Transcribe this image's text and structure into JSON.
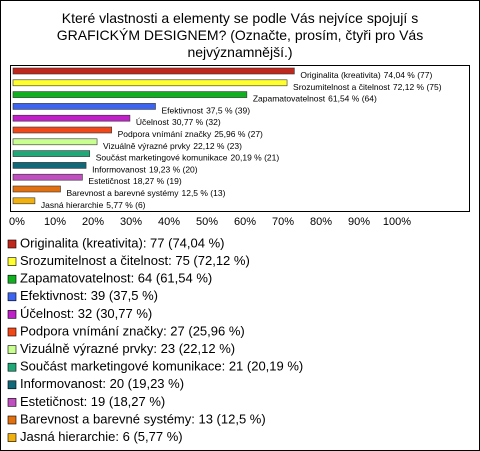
{
  "chart_data": {
    "type": "bar",
    "orientation": "horizontal",
    "title": "Které vlastnosti a elementy se podle Vás nejvíce spojují s GRAFICKÝM DESIGNEM? (Označte, prosím, čtyři pro Vás nejvýznamnější.)",
    "categories": [
      "Originalita (kreativita)",
      "Srozumitelnost a čitelnost",
      "Zapamatovatelnost",
      "Efektivnost",
      "Účelnost",
      "Podpora vnímání značky",
      "Vizuálně výrazné prvky",
      "Součást marketingové komunikace",
      "Informovanost",
      "Estetičnost",
      "Barevnost a barevné systémy",
      "Jasná hierarchie"
    ],
    "values": [
      74.04,
      72.12,
      61.54,
      37.5,
      30.77,
      25.96,
      22.12,
      20.19,
      19.23,
      18.27,
      12.5,
      5.77
    ],
    "value_labels": [
      "74,04 % (77)",
      "72,12 % (75)",
      "61,54 % (64)",
      "37,5 % (39)",
      "30,77 % (32)",
      "25,96 % (27)",
      "22,12 % (23)",
      "20,19 % (21)",
      "19,23 % (20)",
      "18,27 % (19)",
      "12,5 % (13)",
      "5,77 % (6)"
    ],
    "colors": [
      "#c0281e",
      "#ffff30",
      "#10b020",
      "#3c64f0",
      "#c020c8",
      "#f04818",
      "#c8ff90",
      "#20a878",
      "#106878",
      "#c050c0",
      "#e07010",
      "#f0b010"
    ],
    "legend": [
      "Originalita (kreativita): 77 (74,04 %)",
      "Srozumitelnost a čitelnost: 75 (72,12 %)",
      "Zapamatovatelnost: 64 (61,54 %)",
      "Efektivnost: 39 (37,5 %)",
      "Účelnost: 32 (30,77 %)",
      "Podpora vnímání značky: 27 (25,96 %)",
      "Vizuálně výrazné prvky: 23 (22,12 %)",
      "Součást marketingové komunikace: 21 (20,19 %)",
      "Informovanost: 20 (19,23 %)",
      "Estetičnost: 19 (18,27 %)",
      "Barevnost a barevné systémy: 13 (12,5 %)",
      "Jasná hierarchie: 6 (5,77 %)"
    ],
    "xlim": [
      0,
      100
    ],
    "xticks": [
      {
        "value": 0,
        "label": "0%"
      },
      {
        "value": 10,
        "label": "10%"
      },
      {
        "value": 20,
        "label": "20%"
      },
      {
        "value": 30,
        "label": "30%"
      },
      {
        "value": 40,
        "label": "40%"
      },
      {
        "value": 50,
        "label": "50%"
      },
      {
        "value": 60,
        "label": "60%"
      },
      {
        "value": 70,
        "label": "70%"
      },
      {
        "value": 80,
        "label": "80%"
      },
      {
        "value": 90,
        "label": "90%"
      },
      {
        "value": 100,
        "label": "100%"
      }
    ]
  }
}
